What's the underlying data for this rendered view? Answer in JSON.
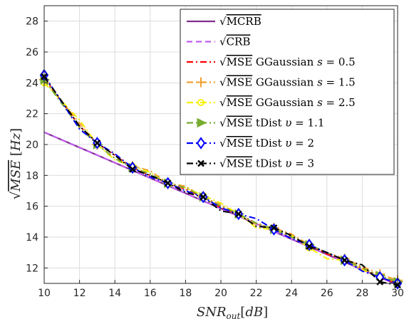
{
  "chart_data": {
    "type": "line",
    "title": "",
    "xlabel": "SNR_out[dB]",
    "ylabel": "√MSE [Hz]",
    "xlim": [
      10,
      30
    ],
    "ylim": [
      11,
      29
    ],
    "xticks": [
      "10",
      "12",
      "14",
      "16",
      "18",
      "20",
      "22",
      "24",
      "26",
      "28",
      "30"
    ],
    "yticks": [
      "12",
      "14",
      "16",
      "18",
      "20",
      "22",
      "24",
      "26",
      "28"
    ],
    "grid": true,
    "legend_position": "top-right",
    "series": [
      {
        "name": "√MCRB",
        "color": "#7E2F8E",
        "style": "solid",
        "marker": "none",
        "x": [
          10,
          30
        ],
        "y": [
          20.8,
          10.9
        ]
      },
      {
        "name": "√CRB",
        "color": "#C05CF0",
        "style": "dashed",
        "marker": "none",
        "x": [
          10,
          30
        ],
        "y": [
          20.8,
          10.9
        ]
      },
      {
        "name": "√MSE GGaussian s = 0.5",
        "color": "#FF0000",
        "style": "dashdot",
        "marker": "none",
        "x": [
          10,
          12,
          13,
          14,
          15,
          16,
          17,
          18,
          19,
          20,
          21,
          22,
          23,
          24,
          25,
          26,
          27,
          28,
          29,
          30
        ],
        "y": [
          24.3,
          21.2,
          20.1,
          19.3,
          18.5,
          18.0,
          17.5,
          17.1,
          16.6,
          15.9,
          15.5,
          14.9,
          14.5,
          14.0,
          13.5,
          12.9,
          12.5,
          12.0,
          11.4,
          11.0
        ]
      },
      {
        "name": "√MSE GGaussian s = 1.5",
        "color": "#F0A030",
        "style": "dashdot",
        "marker": "plus",
        "x": [
          10,
          12,
          13,
          14,
          15,
          16,
          17,
          18,
          19,
          20,
          21,
          22,
          23,
          24,
          25,
          26,
          27,
          28,
          29,
          30
        ],
        "y": [
          24.2,
          21.4,
          20.0,
          19.1,
          18.6,
          18.3,
          17.5,
          17.3,
          16.6,
          16.1,
          15.5,
          14.8,
          14.6,
          14.2,
          13.5,
          13.0,
          12.6,
          12.1,
          11.6,
          11.2
        ]
      },
      {
        "name": "√MSE GGaussian s = 2.5",
        "color": "#F5F000",
        "style": "dashdot",
        "marker": "circle",
        "x": [
          10,
          12,
          13,
          14,
          15,
          16,
          17,
          18,
          19,
          20,
          21,
          22,
          23,
          24,
          25,
          26,
          27,
          28,
          29,
          30
        ],
        "y": [
          24.0,
          21.6,
          20.0,
          19.0,
          18.6,
          18.2,
          17.4,
          17.2,
          16.7,
          16.2,
          15.5,
          14.6,
          14.5,
          14.1,
          13.3,
          12.6,
          12.5,
          11.9,
          11.4,
          11.1
        ]
      },
      {
        "name": "√MSE tDist υ = 1.1",
        "color": "#77AC30",
        "style": "dashdot",
        "marker": "triangle-right",
        "x": [
          10,
          12,
          13,
          14,
          15,
          16,
          17,
          18,
          19,
          20,
          21,
          22,
          23,
          24,
          25,
          26,
          27,
          28,
          29,
          30
        ],
        "y": [
          24.2,
          21.1,
          20.0,
          19.1,
          18.5,
          18.1,
          17.5,
          17.2,
          16.6,
          16.0,
          15.5,
          14.9,
          14.5,
          14.0,
          13.5,
          13.0,
          12.5,
          12.0,
          11.5,
          11.1
        ]
      },
      {
        "name": "√MSE tDist υ = 2",
        "color": "#0000FF",
        "style": "dashdot",
        "marker": "diamond",
        "x": [
          10,
          12,
          13,
          14,
          15,
          16,
          17,
          18,
          19,
          20,
          21,
          22,
          23,
          24,
          25,
          26,
          27,
          28,
          29,
          30
        ],
        "y": [
          24.5,
          21.0,
          20.1,
          19.4,
          18.5,
          17.9,
          17.5,
          17.0,
          16.6,
          15.9,
          15.5,
          15.2,
          14.5,
          13.9,
          13.5,
          13.0,
          12.5,
          11.8,
          11.4,
          11.0
        ]
      },
      {
        "name": "√MSE tDist υ = 3",
        "color": "#000000",
        "style": "dashdot",
        "marker": "x",
        "x": [
          10,
          12,
          13,
          14,
          15,
          16,
          17,
          18,
          19,
          20,
          21,
          22,
          23,
          24,
          25,
          26,
          27,
          28,
          29,
          30
        ],
        "y": [
          24.4,
          21.2,
          20.1,
          19.3,
          18.4,
          18.0,
          17.5,
          16.9,
          16.6,
          15.7,
          15.5,
          14.7,
          14.6,
          14.1,
          13.4,
          13.0,
          12.5,
          12.2,
          11.1,
          10.9
        ]
      }
    ]
  }
}
